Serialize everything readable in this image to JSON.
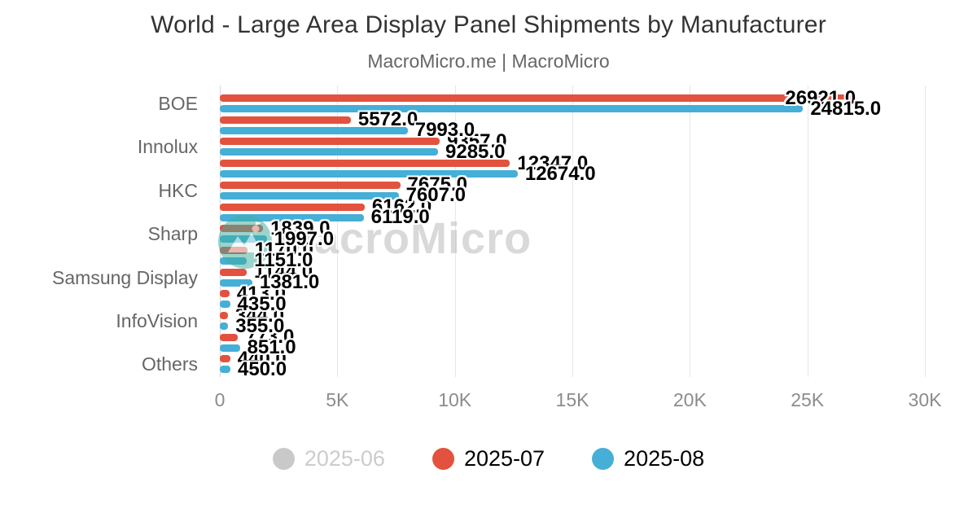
{
  "title": "World - Large Area Display Panel Shipments by Manufacturer",
  "subtitle": "MacroMicro.me | MacroMicro",
  "watermark_text": "MacroMicro",
  "colors": {
    "series_2025_07": "#e2523e",
    "series_2025_08": "#45afd7",
    "disabled_legend": "#c9c9c9",
    "grid": "#e6e6e6",
    "axis_text": "#8c8c8c",
    "category_text": "#666666",
    "title_text": "#333333",
    "watermark_logo": "#3fae9f"
  },
  "legend": [
    {
      "label": "2025-06",
      "color": "#c9c9c9",
      "disabled": true
    },
    {
      "label": "2025-07",
      "color": "#e2523e",
      "disabled": false
    },
    {
      "label": "2025-08",
      "color": "#45afd7",
      "disabled": false
    }
  ],
  "chart_data": {
    "type": "bar",
    "orientation": "horizontal",
    "title": "World - Large Area Display Panel Shipments by Manufacturer",
    "subtitle": "MacroMicro.me | MacroMicro",
    "categories": [
      "BOE",
      "",
      "Innolux",
      "",
      "HKC",
      "",
      "Sharp",
      "",
      "Samsung Display",
      "",
      "InfoVision",
      "",
      "Others"
    ],
    "note": "only every other category tick label is shown in the chart; blank strings are categories whose labels are hidden",
    "series": [
      {
        "name": "2025-07",
        "color": "#e2523e",
        "values": [
          26921,
          5572,
          9357,
          12347,
          7675,
          6162,
          1839,
          1170,
          1144,
          413,
          344,
          773,
          440
        ]
      },
      {
        "name": "2025-08",
        "color": "#45afd7",
        "values": [
          24815,
          7993,
          9285,
          12674,
          7607,
          6119,
          1997,
          1151,
          1381,
          435,
          355,
          851,
          450
        ]
      }
    ],
    "hidden_series": {
      "name": "2025-06",
      "state": "toggled-off"
    },
    "value_label_decimals": 1,
    "xlim": [
      0,
      30000
    ],
    "xticks": [
      0,
      5000,
      10000,
      15000,
      20000,
      25000,
      30000
    ],
    "xtick_labels": [
      "0",
      "5K",
      "10K",
      "15K",
      "20K",
      "25K",
      "30K"
    ],
    "grid": true,
    "legend_position": "bottom"
  }
}
